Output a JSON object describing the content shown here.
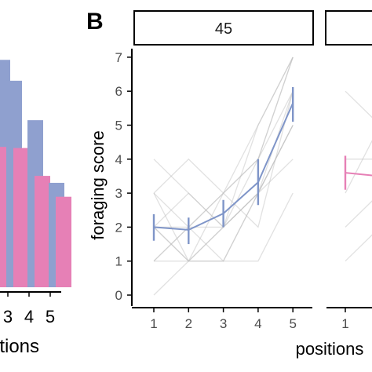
{
  "chart_data": [
    {
      "type": "bar",
      "panel_label": "",
      "categories": [
        "3",
        "4",
        "5"
      ],
      "xlabel": "itions",
      "series": [
        {
          "name": "",
          "color": "#8FA0CF",
          "values": [
            8.9,
            7.2,
            4.5
          ]
        },
        {
          "name": "",
          "color": "#E680B6",
          "values": [
            6.0,
            4.8,
            3.9
          ]
        }
      ],
      "ylim": [
        0,
        11.5
      ],
      "partial_category_visible": "2",
      "partial_values": [
        9.8,
        9.8
      ]
    },
    {
      "type": "line",
      "panel_label": "B",
      "facets": [
        {
          "strip": "45",
          "color": "#7F95C8",
          "x": [
            1,
            2,
            3,
            4,
            5
          ],
          "y": [
            2.0,
            1.92,
            2.4,
            3.32,
            5.65
          ],
          "err_low": [
            1.6,
            1.5,
            2.0,
            2.65,
            5.1
          ],
          "err_high": [
            2.38,
            2.28,
            2.8,
            4.0,
            6.12
          ],
          "individual_trajectories": [
            [
              1,
              1,
              1,
              3,
              5
            ],
            [
              2,
              1,
              2,
              3,
              6
            ],
            [
              3,
              2,
              3,
              4,
              7
            ],
            [
              2,
              3,
              2,
              3,
              5
            ],
            [
              1,
              2,
              3,
              4,
              6
            ],
            [
              3,
              1,
              2,
              5,
              7
            ],
            [
              2,
              2,
              1,
              3,
              4
            ],
            [
              0,
              1,
              3,
              2,
              6
            ],
            [
              4,
              3,
              2,
              4,
              7
            ],
            [
              2,
              1,
              1,
              1,
              3
            ],
            [
              3,
              4,
              3,
              5,
              7
            ],
            [
              1,
              2,
              2,
              3,
              5
            ]
          ]
        },
        {
          "strip": "",
          "color": "#E680B6",
          "x": [
            1,
            2
          ],
          "y": [
            3.6,
            3.5
          ],
          "err_low": [
            3.1,
            3.0
          ],
          "err_high": [
            4.1,
            4.0
          ],
          "individual_trajectories": [
            [
              4,
              4
            ],
            [
              3,
              5
            ],
            [
              1,
              2
            ],
            [
              2,
              3
            ],
            [
              6,
              5
            ]
          ]
        }
      ],
      "xlabel": "positions",
      "ylabel": "foraging score",
      "ylim": [
        0,
        7
      ],
      "yticks": [
        0,
        1,
        2,
        3,
        4,
        5,
        6,
        7
      ],
      "xticks": [
        1,
        2,
        3,
        4,
        5
      ],
      "grid": false
    }
  ]
}
